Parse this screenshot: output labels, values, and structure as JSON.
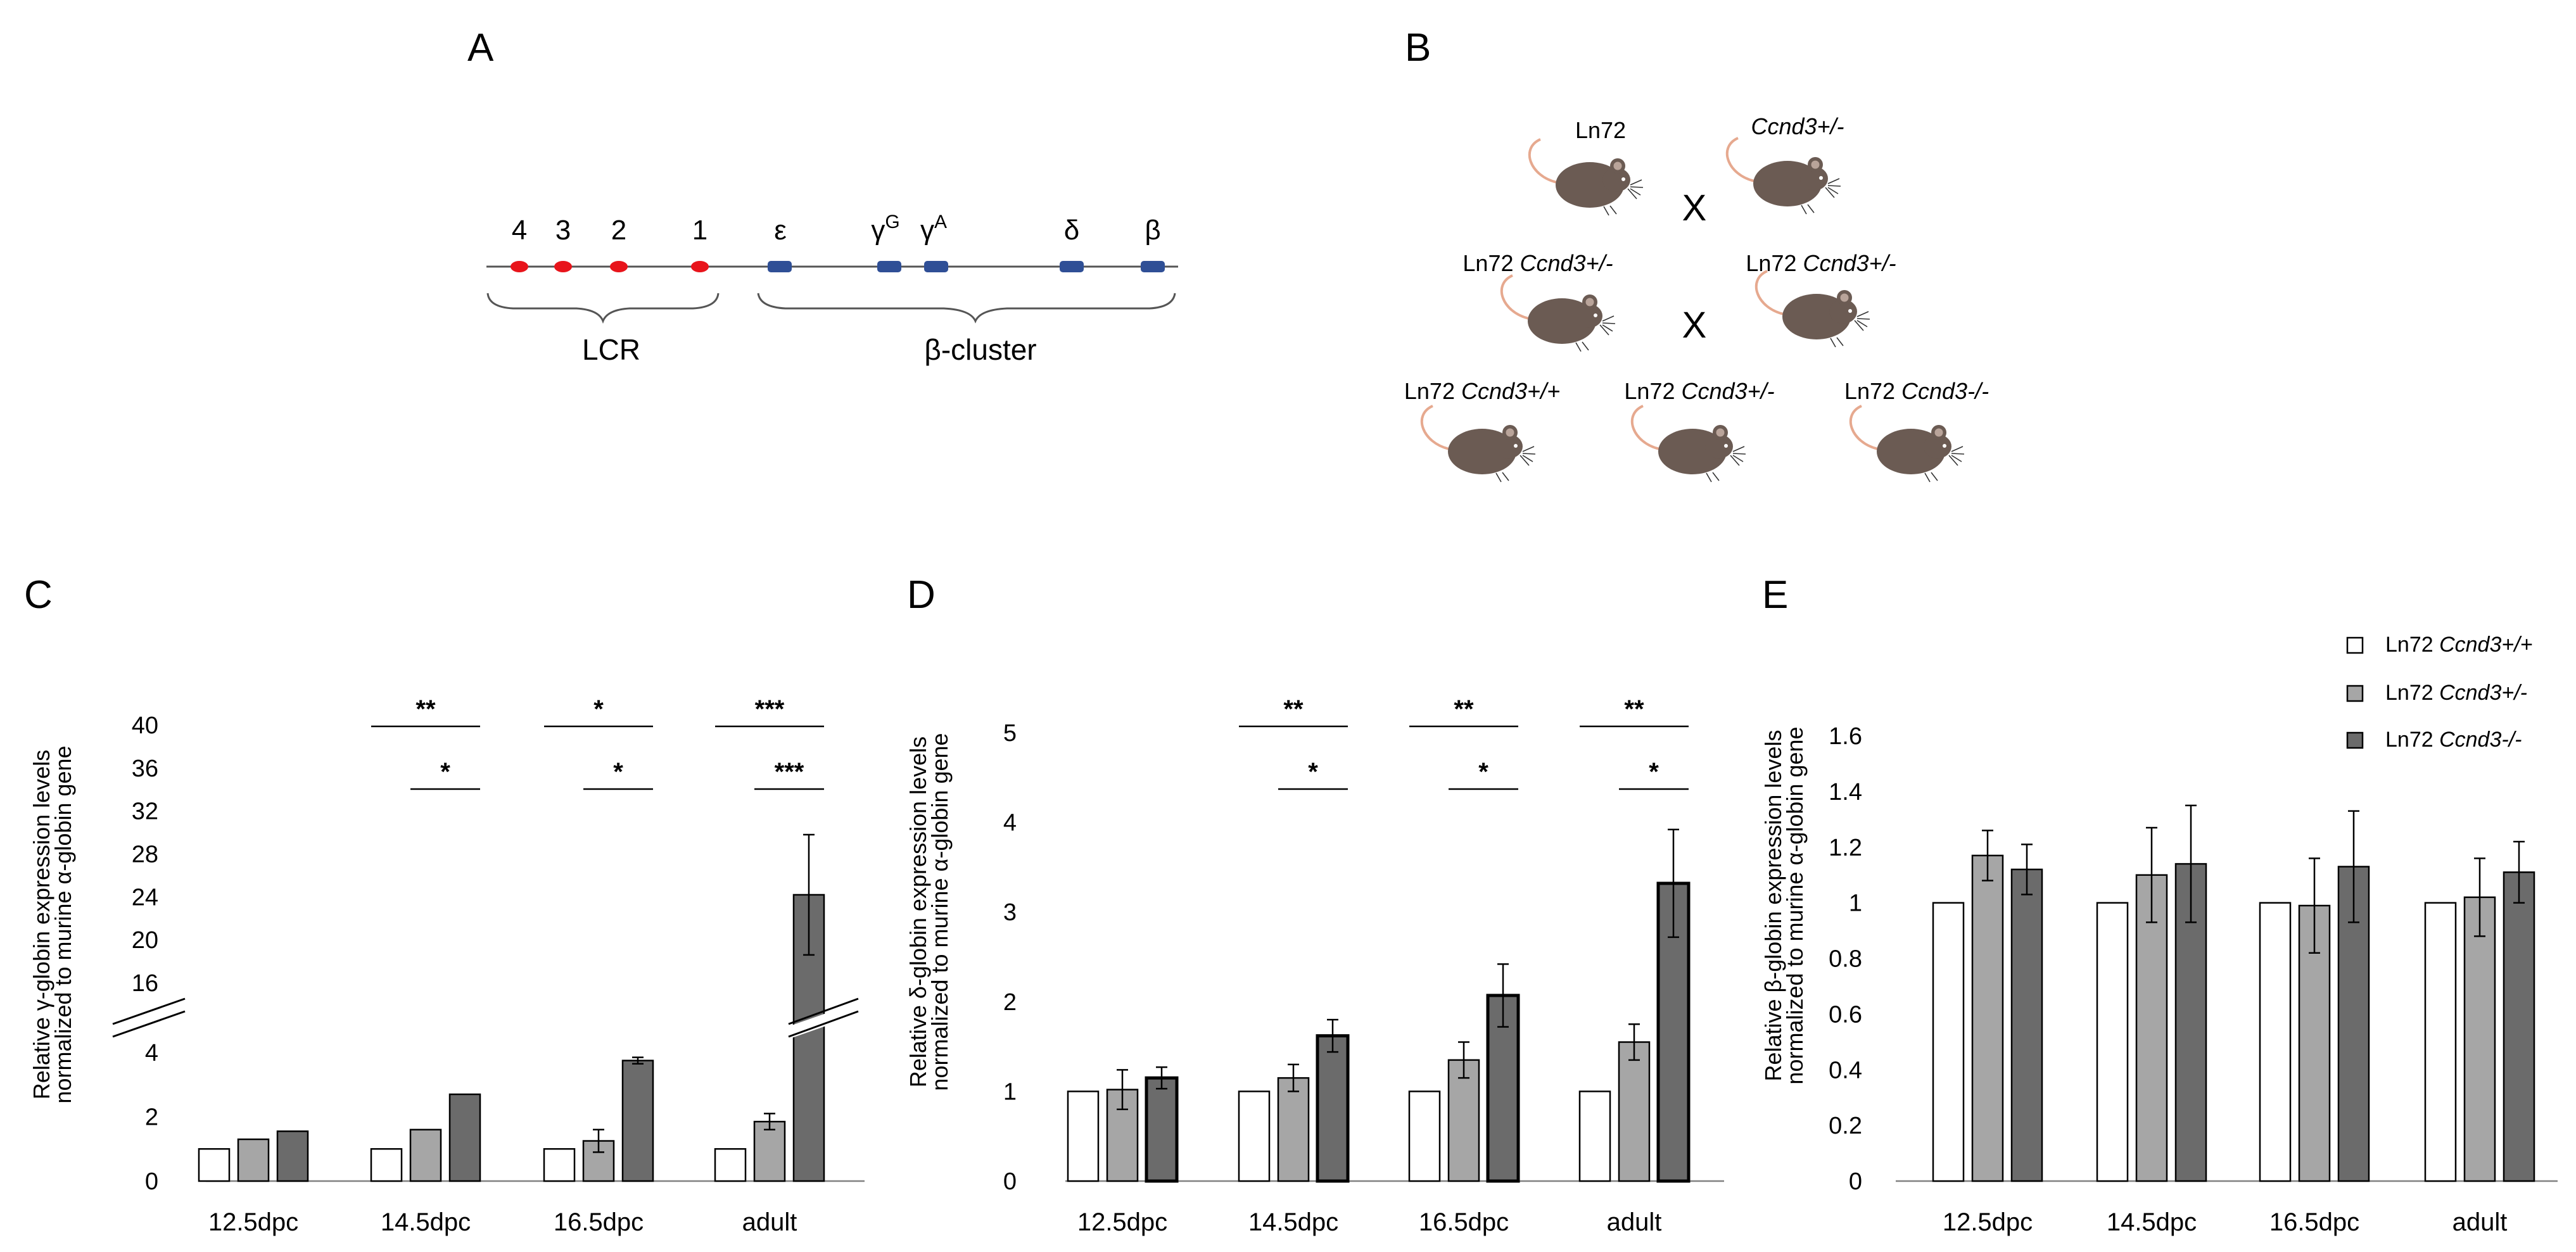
{
  "panel_letters": {
    "a": "A",
    "b": "B",
    "c": "C",
    "d": "D",
    "e": "E"
  },
  "panel_a": {
    "lcr_sites": [
      "4",
      "3",
      "2",
      "1"
    ],
    "genes": [
      "ε",
      "γ",
      "γ",
      "δ",
      "β"
    ],
    "gamma_g_sup": "G",
    "gamma_a_sup": "A",
    "lcr_label": "LCR",
    "cluster_label": "β-cluster",
    "colors": {
      "lcr_site": "#e8141b",
      "gene": "#2f4f96",
      "line": "#555555"
    }
  },
  "panel_b": {
    "row1_left": "Ln72",
    "row1_right": "Ccnd3+/-",
    "row2_left_prefix": "Ln72 ",
    "row2_left_gene": "Ccnd3+/-",
    "row2_right_prefix": "Ln72 ",
    "row2_right_gene": "Ccnd3+/-",
    "row3_a_prefix": "Ln72 ",
    "row3_a_gene": "Ccnd3+/+",
    "row3_b_prefix": "Ln72 ",
    "row3_b_gene": "Ccnd3+/-",
    "row3_c_prefix": "Ln72 ",
    "row3_c_gene": "Ccnd3-/-",
    "cross1": "X",
    "cross2": "X",
    "mouse_icon": "mouse-icon",
    "colors": {
      "mouse_body": "#6b5b53",
      "mouse_tail": "#e6a98f"
    }
  },
  "legend": [
    {
      "prefix": "Ln72 ",
      "gene": "Ccnd3+/+",
      "color": "#ffffff"
    },
    {
      "prefix": "Ln72 ",
      "gene": "Ccnd3+/-",
      "color": "#a6a6a6"
    },
    {
      "prefix": "Ln72 ",
      "gene": "Ccnd3-/-",
      "color": "#6b6b6b"
    }
  ],
  "chart_data": [
    {
      "panel": "C",
      "type": "bar",
      "categories": [
        "12.5dpc",
        "14.5dpc",
        "16.5dpc",
        "adult"
      ],
      "ylabel_line1": "Relative γ-globin expression levels",
      "ylabel_line2": "normalized to murine α-globin gene",
      "axis_break": true,
      "lower_range": [
        0,
        4
      ],
      "upper_range": [
        16,
        40
      ],
      "lower_ticks": [
        "0",
        "2",
        "4"
      ],
      "upper_ticks": [
        "16",
        "20",
        "24",
        "28",
        "32",
        "36",
        "40"
      ],
      "series": [
        {
          "name": "Ln72 Ccnd3+/+",
          "values": [
            1,
            1,
            1,
            1
          ],
          "errors": [
            0,
            0,
            0,
            0
          ]
        },
        {
          "name": "Ln72 Ccnd3+/-",
          "values": [
            1.3,
            1.6,
            1.25,
            1.85
          ],
          "errors": [
            0,
            0,
            0.35,
            0.25
          ]
        },
        {
          "name": "Ln72 Ccnd3-/-",
          "values": [
            1.55,
            2.7,
            3.75,
            24.2
          ],
          "errors": [
            0,
            0,
            0.1,
            5.6
          ]
        }
      ],
      "significance": [
        {
          "category": "14.5dpc",
          "from": 0,
          "to": 2,
          "label": "**"
        },
        {
          "category": "14.5dpc",
          "from": 1,
          "to": 2,
          "label": "*"
        },
        {
          "category": "16.5dpc",
          "from": 0,
          "to": 2,
          "label": "*"
        },
        {
          "category": "16.5dpc",
          "from": 1,
          "to": 2,
          "label": "*"
        },
        {
          "category": "adult",
          "from": 0,
          "to": 2,
          "label": "***"
        },
        {
          "category": "adult",
          "from": 1,
          "to": 2,
          "label": "***"
        }
      ]
    },
    {
      "panel": "D",
      "type": "bar",
      "categories": [
        "12.5dpc",
        "14.5dpc",
        "16.5dpc",
        "adult"
      ],
      "ylabel_line1": "Relative δ-globin expression levels",
      "ylabel_line2": "normalized to murine α-globin gene",
      "ylim": [
        0,
        5
      ],
      "yticks": [
        0,
        1,
        2,
        3,
        4,
        5
      ],
      "ytick_labels": [
        "0",
        "1",
        "2",
        "3",
        "4",
        "5"
      ],
      "series": [
        {
          "name": "Ln72 Ccnd3+/+",
          "values": [
            1,
            1,
            1,
            1
          ],
          "errors": [
            0,
            0,
            0,
            0
          ]
        },
        {
          "name": "Ln72 Ccnd3+/-",
          "values": [
            1.02,
            1.15,
            1.35,
            1.55
          ],
          "errors": [
            0.22,
            0.15,
            0.2,
            0.2
          ]
        },
        {
          "name": "Ln72 Ccnd3-/-",
          "values": [
            1.15,
            1.62,
            2.07,
            3.32
          ],
          "errors": [
            0.12,
            0.18,
            0.35,
            0.6
          ]
        }
      ],
      "significance": [
        {
          "category": "14.5dpc",
          "from": 0,
          "to": 2,
          "label": "**"
        },
        {
          "category": "14.5dpc",
          "from": 1,
          "to": 2,
          "label": "*"
        },
        {
          "category": "16.5dpc",
          "from": 0,
          "to": 2,
          "label": "**"
        },
        {
          "category": "16.5dpc",
          "from": 1,
          "to": 2,
          "label": "*"
        },
        {
          "category": "adult",
          "from": 0,
          "to": 2,
          "label": "**"
        },
        {
          "category": "adult",
          "from": 1,
          "to": 2,
          "label": "*"
        }
      ]
    },
    {
      "panel": "E",
      "type": "bar",
      "categories": [
        "12.5dpc",
        "14.5dpc",
        "16.5dpc",
        "adult"
      ],
      "ylabel_line1": "Relative β-globin expression levels",
      "ylabel_line2": "normalized to murine α-globin gene",
      "ylim": [
        0,
        1.6
      ],
      "yticks": [
        0,
        0.2,
        0.4,
        0.6,
        0.8,
        1,
        1.2,
        1.4,
        1.6
      ],
      "ytick_labels": [
        "0",
        "0.2",
        "0.4",
        "0.6",
        "0.8",
        "1",
        "1.2",
        "1.4",
        "1.6"
      ],
      "series": [
        {
          "name": "Ln72 Ccnd3+/+",
          "values": [
            1,
            1,
            1,
            1
          ],
          "errors": [
            0,
            0,
            0,
            0
          ]
        },
        {
          "name": "Ln72 Ccnd3+/-",
          "values": [
            1.17,
            1.1,
            0.99,
            1.02
          ],
          "errors": [
            0.09,
            0.17,
            0.17,
            0.14
          ]
        },
        {
          "name": "Ln72 Ccnd3-/-",
          "values": [
            1.12,
            1.14,
            1.13,
            1.11
          ],
          "errors": [
            0.09,
            0.21,
            0.2,
            0.11
          ]
        }
      ],
      "significance": []
    }
  ]
}
